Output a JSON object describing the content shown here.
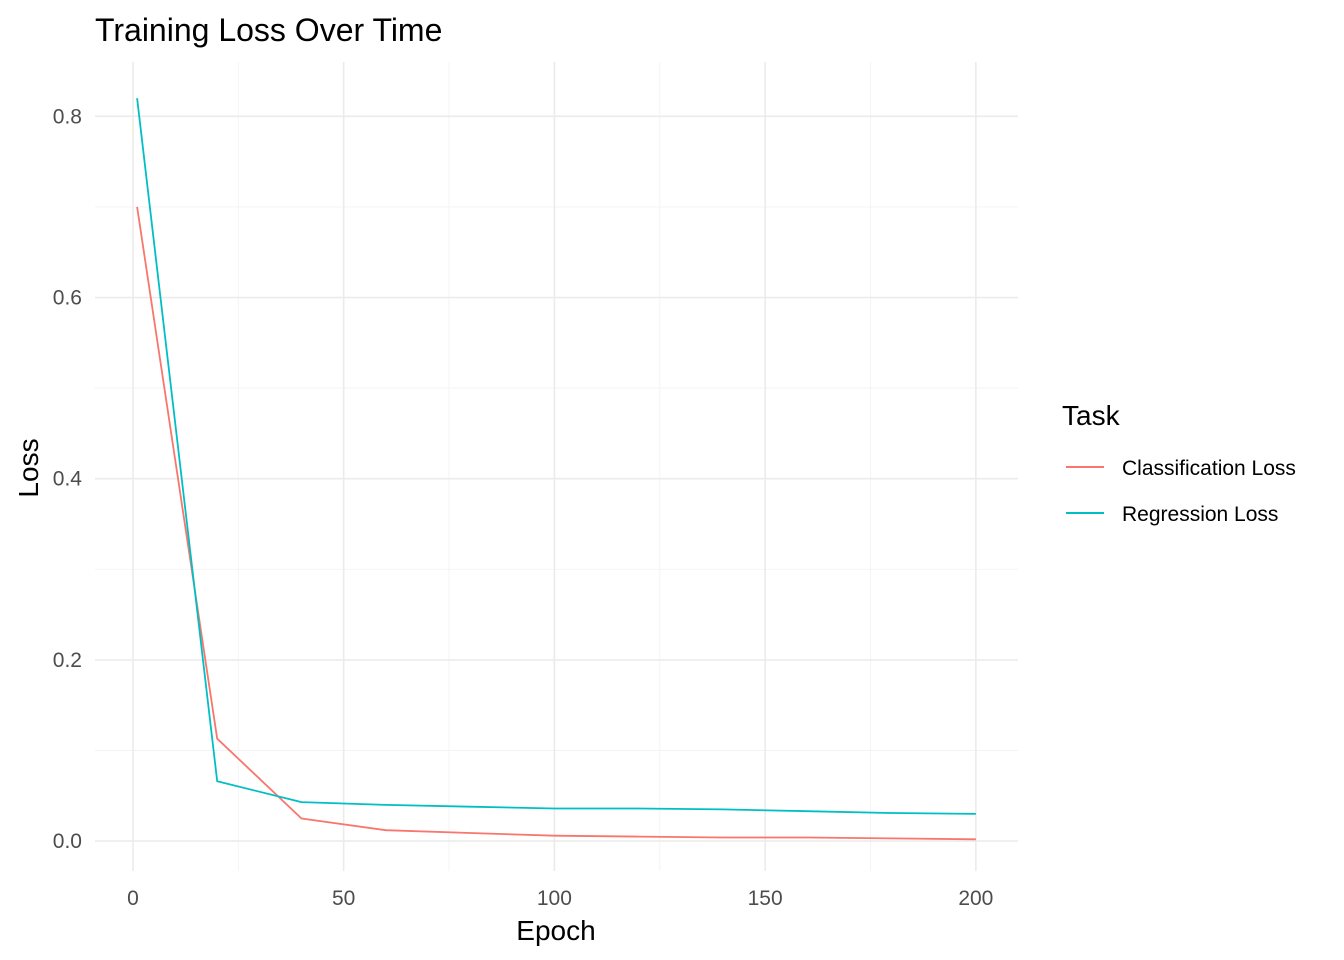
{
  "chart_data": {
    "type": "line",
    "title": "Training Loss Over Time",
    "xlabel": "Epoch",
    "ylabel": "Loss",
    "xlim": [
      -9,
      210
    ],
    "ylim": [
      -0.033,
      0.86
    ],
    "x_ticks": [
      0,
      50,
      100,
      150,
      200
    ],
    "x_tick_labels": [
      "0",
      "50",
      "100",
      "150",
      "200"
    ],
    "x_minor_ticks": [
      25,
      75,
      125,
      175
    ],
    "y_ticks": [
      0,
      0.2,
      0.4,
      0.6,
      0.8
    ],
    "y_tick_labels": [
      "0.0",
      "0.2",
      "0.4",
      "0.6",
      "0.8"
    ],
    "y_minor_ticks": [
      0.1,
      0.3,
      0.5,
      0.7
    ],
    "grid": true,
    "legend": {
      "title": "Task",
      "position": "right"
    },
    "series": [
      {
        "name": "Classification Loss",
        "color": "#F8766D",
        "x": [
          1,
          20,
          40,
          60,
          80,
          100,
          120,
          140,
          160,
          180,
          200
        ],
        "y": [
          0.7,
          0.113,
          0.025,
          0.012,
          0.009,
          0.006,
          0.005,
          0.004,
          0.004,
          0.003,
          0.002
        ]
      },
      {
        "name": "Regression Loss",
        "color": "#00BFC4",
        "x": [
          1,
          20,
          40,
          60,
          80,
          100,
          120,
          140,
          160,
          180,
          200
        ],
        "y": [
          0.82,
          0.066,
          0.043,
          0.04,
          0.038,
          0.036,
          0.036,
          0.035,
          0.033,
          0.031,
          0.03
        ]
      }
    ]
  }
}
